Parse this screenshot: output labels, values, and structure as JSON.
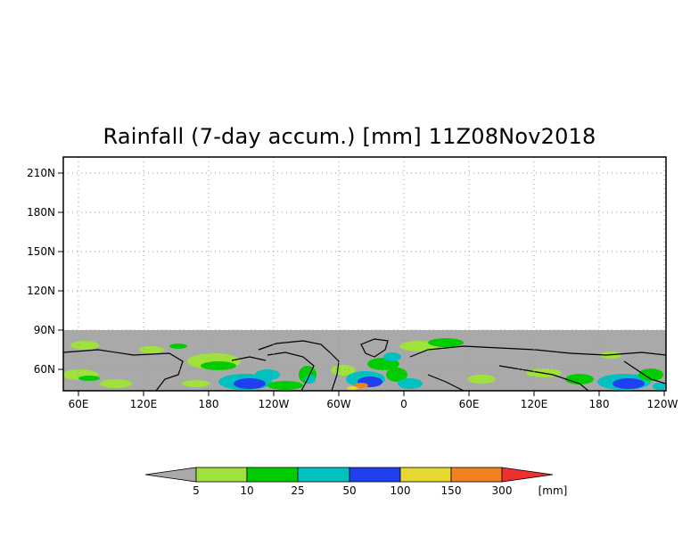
{
  "title": "Rainfall (7-day accum.) [mm] 11Z08Nov2018",
  "map": {
    "y_ticks": [
      "210N",
      "180N",
      "150N",
      "120N",
      "90N",
      "60N"
    ],
    "x_ticks": [
      "60E",
      "120E",
      "180",
      "120W",
      "60W",
      "0",
      "60E",
      "120E",
      "180",
      "120W"
    ],
    "grid": "dotted",
    "no_data_color": "#a9a9a9"
  },
  "colorbar": {
    "levels": [
      "5",
      "10",
      "25",
      "50",
      "100",
      "150",
      "300"
    ],
    "unit": "[mm]",
    "colors": [
      "#a9a9a9",
      "#9fe23c",
      "#00cc00",
      "#00c0c0",
      "#2040f0",
      "#e6d830",
      "#f08020",
      "#f03030"
    ]
  }
}
